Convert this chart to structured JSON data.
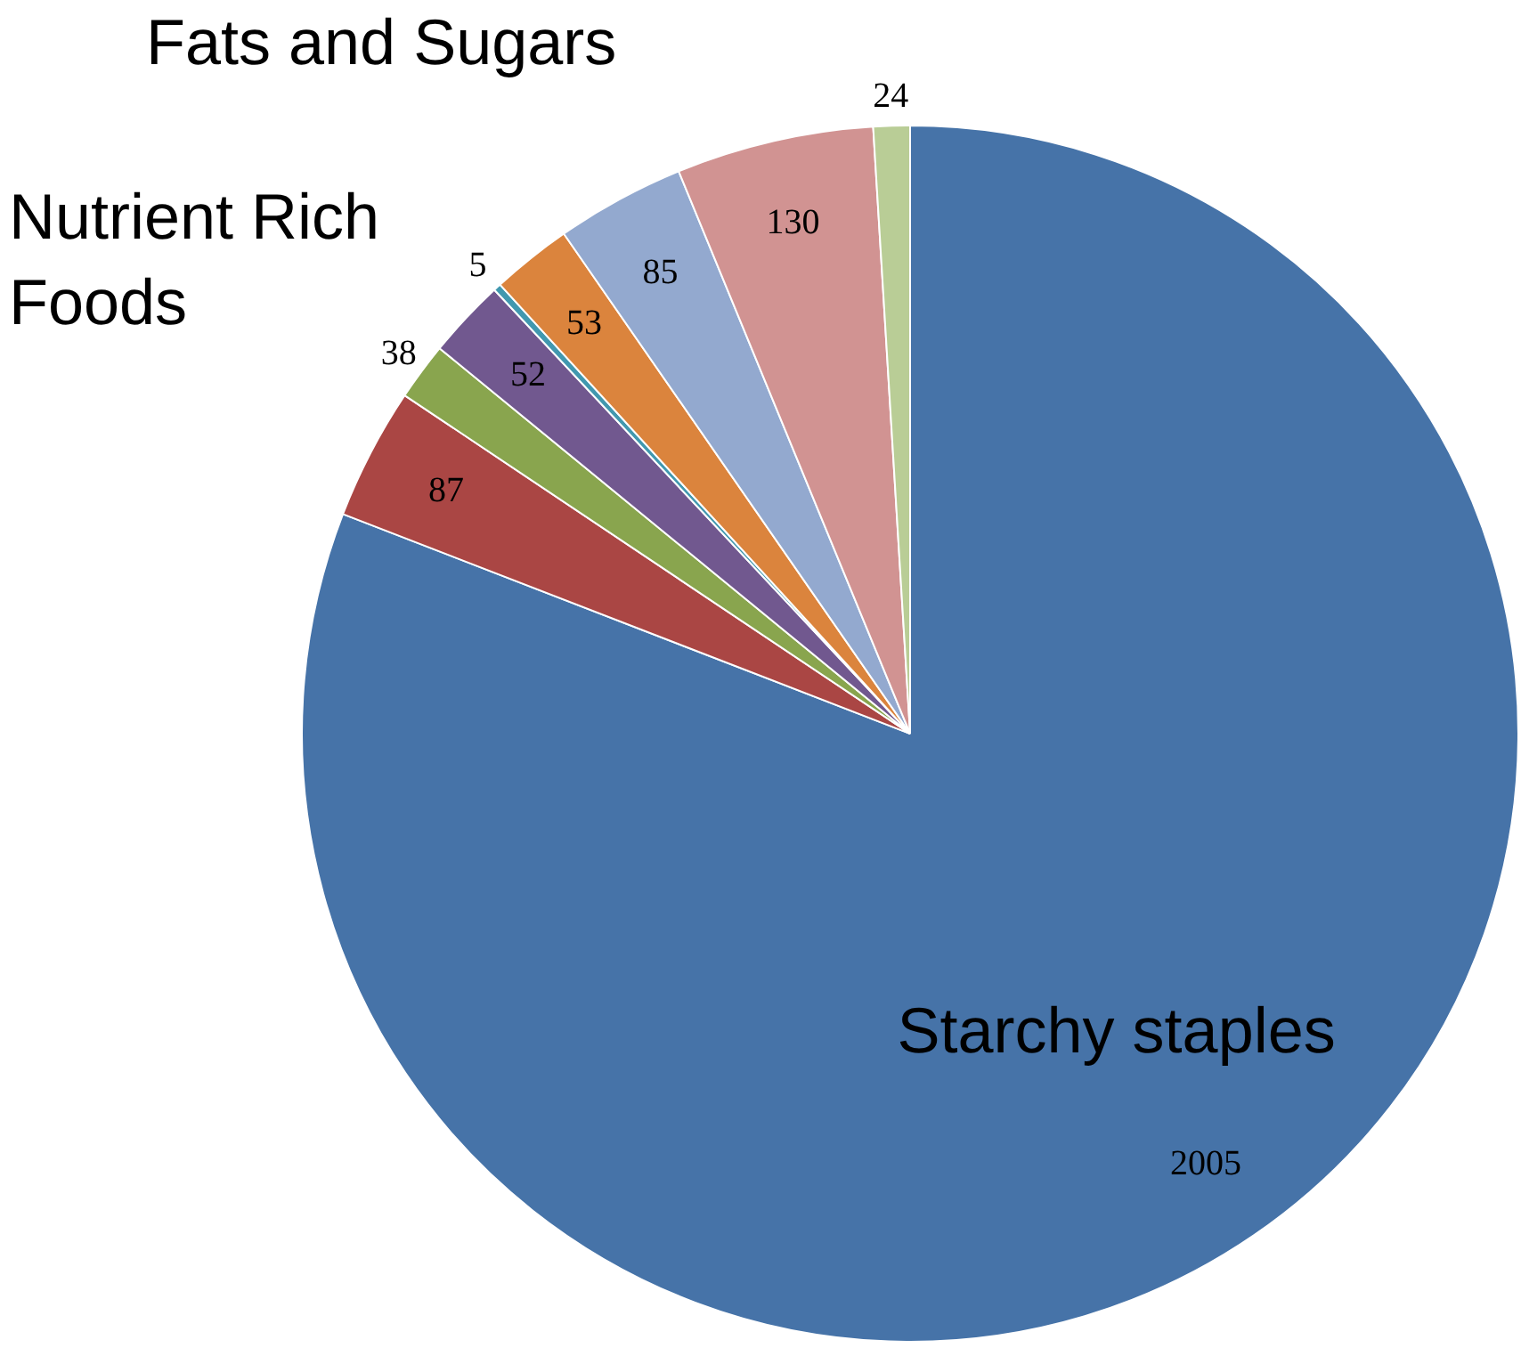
{
  "chart_data": {
    "type": "pie",
    "categories": [
      "Starchy staples",
      null,
      null,
      null,
      null,
      null,
      null,
      null,
      null
    ],
    "values": [
      2005,
      87,
      38,
      52,
      5,
      53,
      85,
      130,
      24
    ],
    "colors": [
      "#4673a8",
      "#aa4644",
      "#89a54e",
      "#71588f",
      "#4198af",
      "#db843d",
      "#93a9cf",
      "#d19392",
      "#b9cd96"
    ],
    "data_labels": true,
    "annotations": [
      "Fats and Sugars",
      "Nutrient Rich Foods"
    ],
    "legend": false
  }
}
